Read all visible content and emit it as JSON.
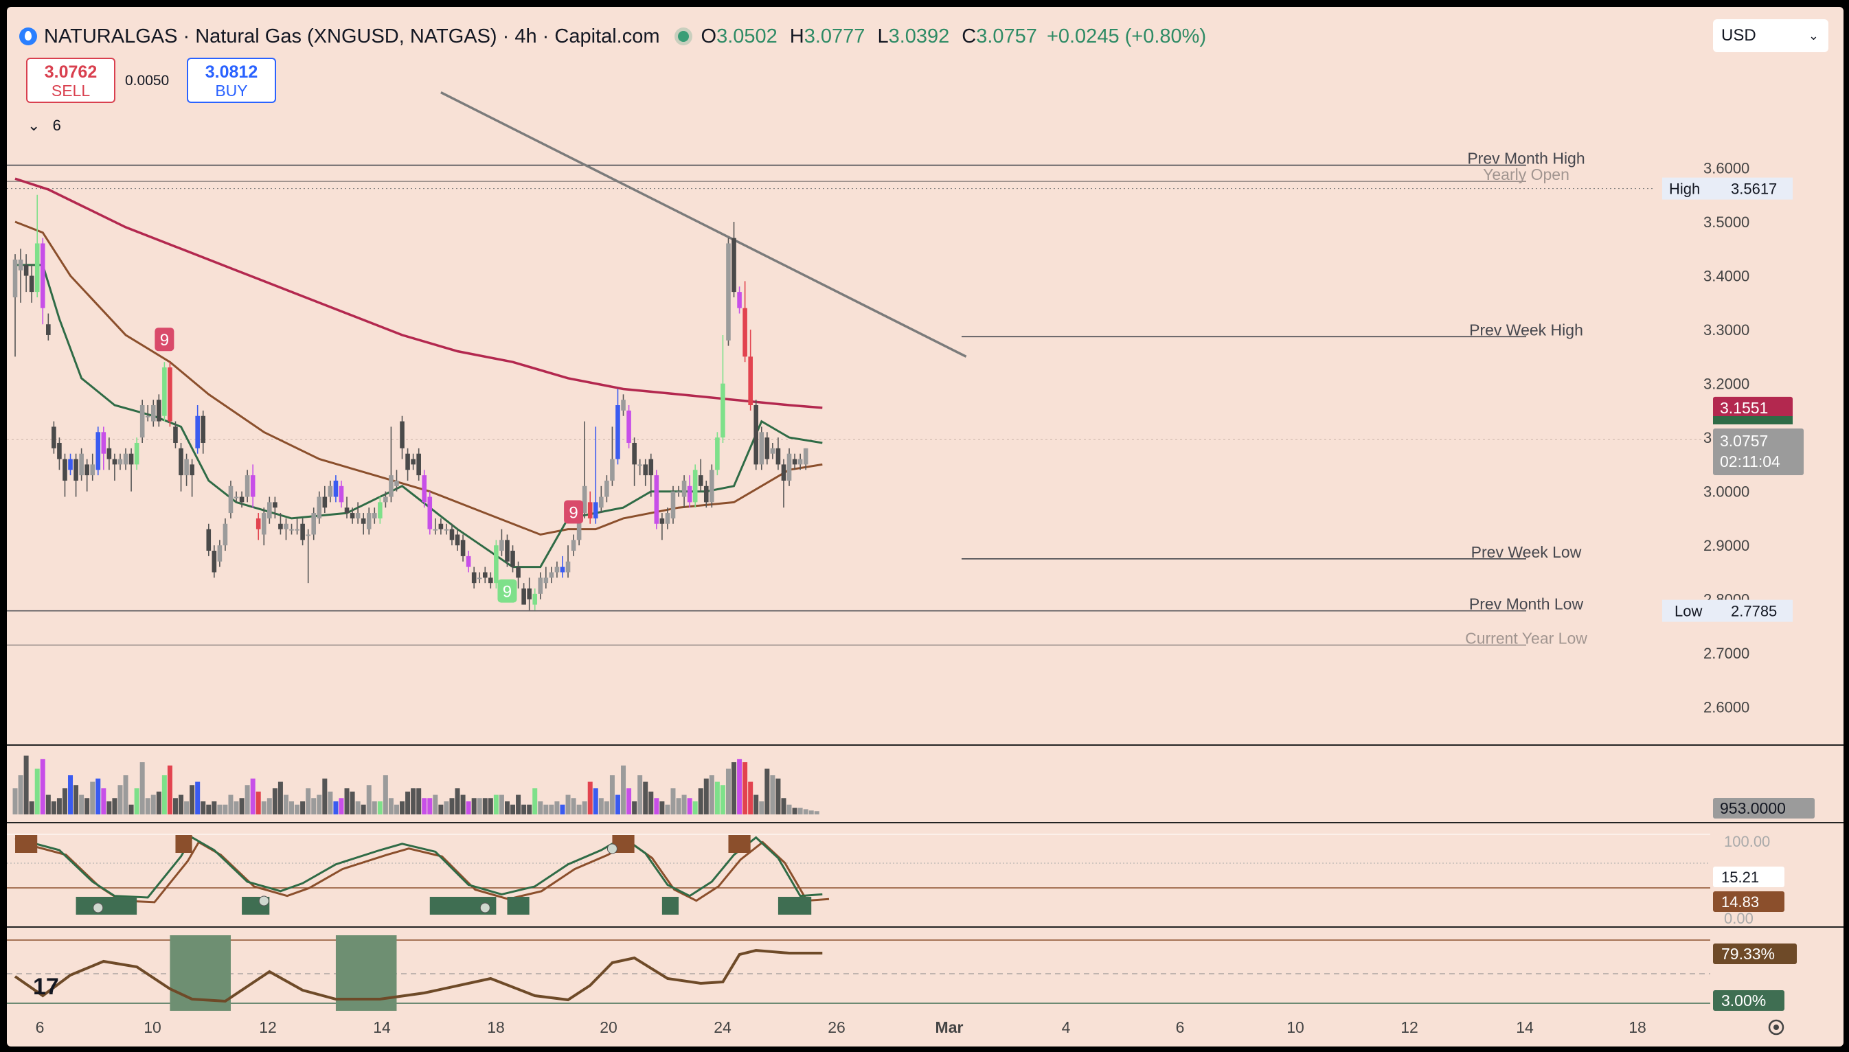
{
  "header": {
    "title": "NATURALGAS · Natural Gas (XNGUSD, NATGAS) · 4h · Capital.com",
    "open_label": "O",
    "open": "3.0502",
    "high_label": "H",
    "high": "3.0777",
    "low_label": "L",
    "low": "3.0392",
    "close_label": "C",
    "close": "3.0757",
    "change": "+0.0245 (+0.80%)"
  },
  "trade": {
    "sell_price": "3.0762",
    "sell_label": "SELL",
    "buy_price": "3.0812",
    "buy_label": "BUY",
    "spread": "0.0050"
  },
  "currency": "USD",
  "collapse_count": "6",
  "colors": {
    "background": "#f8e1d6",
    "ema_fast": "#2f6b46",
    "ema_mid": "#8b4f2c",
    "ema_slow": "#b3284f",
    "bull": "#7ee08a",
    "bear": "#c74fe8",
    "up_strong": "#3a5bf0",
    "down_strong": "#e2434f",
    "neutral": "#7a7a7a",
    "neutral_dark": "#4a4a4a"
  },
  "chart_data": {
    "type": "candlestick",
    "symbol": "NATURALGAS",
    "interval": "4h",
    "ylim": [
      2.55,
      3.7
    ],
    "y_ticks": [
      "3.6000",
      "3.5000",
      "3.4000",
      "3.3000",
      "3.2000",
      "3.1000",
      "3.0000",
      "2.9000",
      "2.8000",
      "2.7000",
      "2.6000"
    ],
    "x_ticks": [
      "6",
      "10",
      "12",
      "14",
      "18",
      "20",
      "24",
      "26",
      "Mar",
      "4",
      "6",
      "10",
      "12",
      "14",
      "18"
    ],
    "candles": [
      [
        3.36,
        3.43,
        3.25,
        3.44,
        "n"
      ],
      [
        3.41,
        3.43,
        3.35,
        3.45,
        "n"
      ],
      [
        3.42,
        3.4,
        3.37,
        3.44,
        "n"
      ],
      [
        3.4,
        3.37,
        3.35,
        3.42,
        "n"
      ],
      [
        3.37,
        3.46,
        3.36,
        3.55,
        "g"
      ],
      [
        3.46,
        3.34,
        3.31,
        3.47,
        "m"
      ],
      [
        3.31,
        3.29,
        3.28,
        3.33,
        "n"
      ],
      [
        3.12,
        3.08,
        3.07,
        3.13,
        "n"
      ],
      [
        3.09,
        3.06,
        3.04,
        3.1,
        "n"
      ],
      [
        3.06,
        3.02,
        2.99,
        3.07,
        "n"
      ],
      [
        3.04,
        3.06,
        3.03,
        3.07,
        "b"
      ],
      [
        3.06,
        3.02,
        2.99,
        3.07,
        "n"
      ],
      [
        3.03,
        3.07,
        3.02,
        3.08,
        "n"
      ],
      [
        3.05,
        3.03,
        3.0,
        3.06,
        "n"
      ],
      [
        3.03,
        3.05,
        3.02,
        3.07,
        "n"
      ],
      [
        3.04,
        3.11,
        3.03,
        3.12,
        "b"
      ],
      [
        3.07,
        3.11,
        3.04,
        3.12,
        "m"
      ],
      [
        3.08,
        3.06,
        3.04,
        3.1,
        "n"
      ],
      [
        3.06,
        3.05,
        3.02,
        3.07,
        "n"
      ],
      [
        3.05,
        3.06,
        3.04,
        3.07,
        "n"
      ],
      [
        3.05,
        3.07,
        3.04,
        3.08,
        "n"
      ],
      [
        3.07,
        3.05,
        3.0,
        3.08,
        "n"
      ],
      [
        3.05,
        3.09,
        3.04,
        3.1,
        "g"
      ],
      [
        3.1,
        3.16,
        3.09,
        3.17,
        "n"
      ],
      [
        3.14,
        3.14,
        3.13,
        3.16,
        "n"
      ],
      [
        3.13,
        3.16,
        3.12,
        3.17,
        "n"
      ],
      [
        3.17,
        3.13,
        3.12,
        3.18,
        "n"
      ],
      [
        3.14,
        3.23,
        3.13,
        3.24,
        "g"
      ],
      [
        3.23,
        3.13,
        3.12,
        3.24,
        "r"
      ],
      [
        3.12,
        3.09,
        3.08,
        3.13,
        "n"
      ],
      [
        3.08,
        3.03,
        3.0,
        3.09,
        "n"
      ],
      [
        3.03,
        3.06,
        3.01,
        3.07,
        "n"
      ],
      [
        3.05,
        3.03,
        2.99,
        3.06,
        "n"
      ],
      [
        3.08,
        3.14,
        3.07,
        3.16,
        "b"
      ],
      [
        3.14,
        3.09,
        3.07,
        3.15,
        "n"
      ],
      [
        2.93,
        2.89,
        2.88,
        2.94,
        "n"
      ],
      [
        2.89,
        2.85,
        2.84,
        2.9,
        "n"
      ],
      [
        2.87,
        2.9,
        2.86,
        2.91,
        "n"
      ],
      [
        2.9,
        2.94,
        2.89,
        2.95,
        "n"
      ],
      [
        2.96,
        3.01,
        2.95,
        3.02,
        "n"
      ],
      [
        2.99,
        2.99,
        2.98,
        3.0,
        "n"
      ],
      [
        2.99,
        2.98,
        2.97,
        3.0,
        "n"
      ],
      [
        2.99,
        3.03,
        2.98,
        3.04,
        "n"
      ],
      [
        3.03,
        2.99,
        2.97,
        3.05,
        "m"
      ],
      [
        2.95,
        2.93,
        2.91,
        2.96,
        "r"
      ],
      [
        2.92,
        2.96,
        2.9,
        2.97,
        "n"
      ],
      [
        2.95,
        2.98,
        2.94,
        2.99,
        "n"
      ],
      [
        2.98,
        2.97,
        2.95,
        2.99,
        "n"
      ],
      [
        2.94,
        2.93,
        2.92,
        2.96,
        "n"
      ],
      [
        2.93,
        2.94,
        2.91,
        2.95,
        "n"
      ],
      [
        2.93,
        2.93,
        2.92,
        2.94,
        "n"
      ],
      [
        2.93,
        2.93,
        2.92,
        2.95,
        "n"
      ],
      [
        2.94,
        2.91,
        2.9,
        2.95,
        "n"
      ],
      [
        2.92,
        2.92,
        2.83,
        2.93,
        "n"
      ],
      [
        2.92,
        2.96,
        2.91,
        2.97,
        "n"
      ],
      [
        2.95,
        2.99,
        2.94,
        3.0,
        "n"
      ],
      [
        2.99,
        2.97,
        2.96,
        3.01,
        "n"
      ],
      [
        2.99,
        3.01,
        2.98,
        3.02,
        "n"
      ],
      [
        2.99,
        3.02,
        2.98,
        3.03,
        "b"
      ],
      [
        3.01,
        2.98,
        2.97,
        3.02,
        "m"
      ],
      [
        2.97,
        2.96,
        2.95,
        2.99,
        "n"
      ],
      [
        2.96,
        2.95,
        2.94,
        2.97,
        "n"
      ],
      [
        2.95,
        2.96,
        2.94,
        2.98,
        "n"
      ],
      [
        2.95,
        2.94,
        2.92,
        2.96,
        "n"
      ],
      [
        2.93,
        2.96,
        2.92,
        2.97,
        "n"
      ],
      [
        2.95,
        2.96,
        2.94,
        2.97,
        "n"
      ],
      [
        2.95,
        2.98,
        2.94,
        2.99,
        "g"
      ],
      [
        2.98,
        2.99,
        2.97,
        3.0,
        "n"
      ],
      [
        2.99,
        3.03,
        2.98,
        3.12,
        "n"
      ],
      [
        3.01,
        3.02,
        3.0,
        3.04,
        "n"
      ],
      [
        3.13,
        3.08,
        3.06,
        3.14,
        "n"
      ],
      [
        3.07,
        3.04,
        3.02,
        3.08,
        "n"
      ],
      [
        3.06,
        3.05,
        3.04,
        3.07,
        "n"
      ],
      [
        3.07,
        3.03,
        3.02,
        3.08,
        "n"
      ],
      [
        3.03,
        2.98,
        2.97,
        3.04,
        "m"
      ],
      [
        2.99,
        2.93,
        2.92,
        3.0,
        "m"
      ],
      [
        2.93,
        2.93,
        2.92,
        2.95,
        "n"
      ],
      [
        2.94,
        2.93,
        2.92,
        2.95,
        "n"
      ],
      [
        2.93,
        2.93,
        2.92,
        2.94,
        "n"
      ],
      [
        2.93,
        2.91,
        2.9,
        2.94,
        "n"
      ],
      [
        2.92,
        2.9,
        2.89,
        2.93,
        "n"
      ],
      [
        2.91,
        2.88,
        2.87,
        2.92,
        "n"
      ],
      [
        2.88,
        2.86,
        2.85,
        2.89,
        "m"
      ],
      [
        2.85,
        2.83,
        2.82,
        2.86,
        "n"
      ],
      [
        2.84,
        2.84,
        2.83,
        2.85,
        "n"
      ],
      [
        2.85,
        2.84,
        2.83,
        2.86,
        "n"
      ],
      [
        2.84,
        2.83,
        2.82,
        2.85,
        "n"
      ],
      [
        2.83,
        2.9,
        2.82,
        2.91,
        "g"
      ],
      [
        2.89,
        2.91,
        2.88,
        2.93,
        "n"
      ],
      [
        2.91,
        2.87,
        2.86,
        2.92,
        "n"
      ],
      [
        2.89,
        2.86,
        2.85,
        2.9,
        "n"
      ],
      [
        2.86,
        2.84,
        2.82,
        2.87,
        "n"
      ],
      [
        2.82,
        2.79,
        2.79,
        2.83,
        "n"
      ],
      [
        2.82,
        2.8,
        2.78,
        2.84,
        "n"
      ],
      [
        2.79,
        2.81,
        2.78,
        2.82,
        "g"
      ],
      [
        2.81,
        2.84,
        2.8,
        2.85,
        "n"
      ],
      [
        2.83,
        2.84,
        2.82,
        2.86,
        "n"
      ],
      [
        2.84,
        2.85,
        2.83,
        2.86,
        "n"
      ],
      [
        2.85,
        2.86,
        2.84,
        2.87,
        "n"
      ],
      [
        2.86,
        2.85,
        2.84,
        2.88,
        "b"
      ],
      [
        2.85,
        2.87,
        2.84,
        2.9,
        "n"
      ],
      [
        2.89,
        2.91,
        2.88,
        2.92,
        "n"
      ],
      [
        2.91,
        2.96,
        2.9,
        2.98,
        "n"
      ],
      [
        2.96,
        3.01,
        2.95,
        3.13,
        "n"
      ],
      [
        2.98,
        2.95,
        2.94,
        3.0,
        "r"
      ],
      [
        2.95,
        2.98,
        2.94,
        3.12,
        "b"
      ],
      [
        2.97,
        2.99,
        2.96,
        3.01,
        "n"
      ],
      [
        2.99,
        3.02,
        2.98,
        3.03,
        "n"
      ],
      [
        3.02,
        3.06,
        3.01,
        3.12,
        "n"
      ],
      [
        3.06,
        3.16,
        3.05,
        3.19,
        "b"
      ],
      [
        3.15,
        3.17,
        3.14,
        3.18,
        "n"
      ],
      [
        3.15,
        3.09,
        3.08,
        3.16,
        "m"
      ],
      [
        3.09,
        3.05,
        3.01,
        3.1,
        "n"
      ],
      [
        3.05,
        3.05,
        3.03,
        3.06,
        "n"
      ],
      [
        3.05,
        3.03,
        3.01,
        3.06,
        "n"
      ],
      [
        3.06,
        3.03,
        2.99,
        3.07,
        "n"
      ],
      [
        3.03,
        2.94,
        2.93,
        3.04,
        "m"
      ],
      [
        2.95,
        2.94,
        2.91,
        2.96,
        "n"
      ],
      [
        2.94,
        2.96,
        2.93,
        2.97,
        "n"
      ],
      [
        2.95,
        3.0,
        2.94,
        3.01,
        "n"
      ],
      [
        3.0,
        3.0,
        2.99,
        3.01,
        "n"
      ],
      [
        2.99,
        3.02,
        2.97,
        3.03,
        "n"
      ],
      [
        3.01,
        2.98,
        2.97,
        3.03,
        "m"
      ],
      [
        2.98,
        3.04,
        2.97,
        3.05,
        "g"
      ],
      [
        3.03,
        3.01,
        3.0,
        3.06,
        "n"
      ],
      [
        3.01,
        2.98,
        2.97,
        3.02,
        "n"
      ],
      [
        2.98,
        3.04,
        2.97,
        3.05,
        "n"
      ],
      [
        3.04,
        3.1,
        3.03,
        3.11,
        "g"
      ],
      [
        3.1,
        3.2,
        3.09,
        3.29,
        "g"
      ],
      [
        3.28,
        3.46,
        3.27,
        3.47,
        "n"
      ],
      [
        3.47,
        3.37,
        3.36,
        3.5,
        "n"
      ],
      [
        3.37,
        3.34,
        3.33,
        3.38,
        "m"
      ],
      [
        3.34,
        3.25,
        3.24,
        3.39,
        "r"
      ],
      [
        3.25,
        3.16,
        3.15,
        3.3,
        "r"
      ],
      [
        3.16,
        3.05,
        3.04,
        3.17,
        "n"
      ],
      [
        3.05,
        3.11,
        3.04,
        3.12,
        "n"
      ],
      [
        3.1,
        3.06,
        3.05,
        3.11,
        "n"
      ],
      [
        3.07,
        3.08,
        3.06,
        3.09,
        "n"
      ],
      [
        3.08,
        3.05,
        3.04,
        3.1,
        "n"
      ],
      [
        3.05,
        3.02,
        2.97,
        3.06,
        "n"
      ],
      [
        3.02,
        3.07,
        3.01,
        3.08,
        "n"
      ],
      [
        3.06,
        3.05,
        3.04,
        3.07,
        "n"
      ],
      [
        3.05,
        3.06,
        3.04,
        3.07,
        "n"
      ],
      [
        3.05,
        3.08,
        3.04,
        3.08,
        "n"
      ]
    ],
    "ma_series": [
      {
        "name": "",
        "color_key": "ema_slow",
        "x": [
          0,
          6,
          12,
          20,
          30,
          40,
          50,
          60,
          70,
          80,
          90,
          100,
          110,
          120,
          130,
          140,
          146
        ],
        "values": [
          3.58,
          3.56,
          3.53,
          3.49,
          3.45,
          3.41,
          3.37,
          3.33,
          3.29,
          3.26,
          3.24,
          3.21,
          3.19,
          3.18,
          3.17,
          3.16,
          3.155
        ]
      },
      {
        "name": "",
        "color_key": "ema_mid",
        "x": [
          0,
          5,
          10,
          20,
          28,
          35,
          45,
          55,
          65,
          75,
          85,
          95,
          100,
          105,
          110,
          120,
          130,
          140,
          146
        ],
        "values": [
          3.5,
          3.48,
          3.4,
          3.29,
          3.24,
          3.18,
          3.11,
          3.06,
          3.03,
          3.0,
          2.96,
          2.92,
          2.93,
          2.93,
          2.95,
          2.97,
          2.98,
          3.04,
          3.05
        ]
      },
      {
        "name": "",
        "color_key": "ema_fast",
        "x": [
          0,
          5,
          8,
          12,
          18,
          25,
          30,
          35,
          40,
          50,
          60,
          70,
          80,
          90,
          95,
          100,
          105,
          110,
          115,
          120,
          125,
          130,
          135,
          140,
          146
        ],
        "values": [
          3.42,
          3.42,
          3.32,
          3.21,
          3.16,
          3.14,
          3.12,
          3.02,
          2.98,
          2.95,
          2.96,
          3.01,
          2.93,
          2.86,
          2.86,
          2.95,
          2.96,
          2.97,
          3.0,
          3.0,
          3.0,
          3.01,
          3.13,
          3.1,
          3.09
        ]
      }
    ],
    "levels": [
      {
        "label": "Prev Month High",
        "value": 3.605
      },
      {
        "label": "Yearly Open",
        "value": 3.575
      },
      {
        "label": "Prev Week High",
        "value": 3.287
      },
      {
        "label": "Prev Week Low",
        "value": 2.875
      },
      {
        "label": "Prev Month Low",
        "value": 2.7785
      },
      {
        "label": "Current Year Low",
        "value": 2.715
      }
    ],
    "high_marker": {
      "label": "High",
      "value": 3.5617,
      "value_text": "3.5617"
    },
    "low_marker": {
      "label": "Low",
      "value": 2.7785,
      "value_text": "2.7785"
    },
    "price_badges": {
      "ema_slow": "3.1551",
      "last_price": "3.0757",
      "countdown": "02:11:04"
    },
    "trendline": [
      [
        77,
        3.74
      ],
      [
        172,
        3.25
      ]
    ],
    "sequential_markers": [
      {
        "label": "9",
        "index": 27,
        "kind": "sell"
      },
      {
        "label": "9",
        "index": 101,
        "kind": "sell"
      },
      {
        "label": "9",
        "index": 89,
        "kind": "buy"
      }
    ],
    "volume": {
      "last_label": "953.0000",
      "values": [
        40,
        60,
        90,
        20,
        70,
        85,
        30,
        20,
        25,
        40,
        60,
        45,
        30,
        25,
        50,
        55,
        40,
        20,
        25,
        45,
        60,
        15,
        40,
        80,
        25,
        30,
        35,
        60,
        75,
        25,
        30,
        20,
        45,
        50,
        20,
        15,
        20,
        15,
        15,
        30,
        20,
        25,
        45,
        55,
        35,
        20,
        25,
        40,
        50,
        30,
        20,
        15,
        20,
        40,
        25,
        30,
        55,
        35,
        20,
        25,
        40,
        35,
        20,
        15,
        45,
        20,
        20,
        60,
        25,
        15,
        20,
        35,
        40,
        40,
        25,
        25,
        30,
        15,
        20,
        25,
        40,
        30,
        20,
        25,
        25,
        25,
        25,
        30,
        30,
        20,
        15,
        30,
        15,
        15,
        40,
        20,
        15,
        15,
        20,
        15,
        30,
        25,
        15,
        20,
        50,
        40,
        25,
        20,
        60,
        30,
        75,
        40,
        20,
        60,
        50,
        35,
        25,
        20,
        15,
        40,
        25,
        30,
        25,
        20,
        40,
        55,
        60,
        50,
        45,
        70,
        80,
        85,
        80,
        50,
        30,
        20,
        70,
        60,
        55,
        25,
        15,
        10,
        10,
        8,
        6,
        5
      ],
      "ylim": [
        0,
        100
      ]
    },
    "oscillator1": {
      "ticks": [
        "100.00",
        "0.00"
      ],
      "badge_values": [
        "15.21",
        "14.83"
      ],
      "ylim": [
        0,
        100
      ]
    },
    "oscillator2": {
      "badges": [
        "79.33%",
        "3.00%"
      ]
    }
  }
}
